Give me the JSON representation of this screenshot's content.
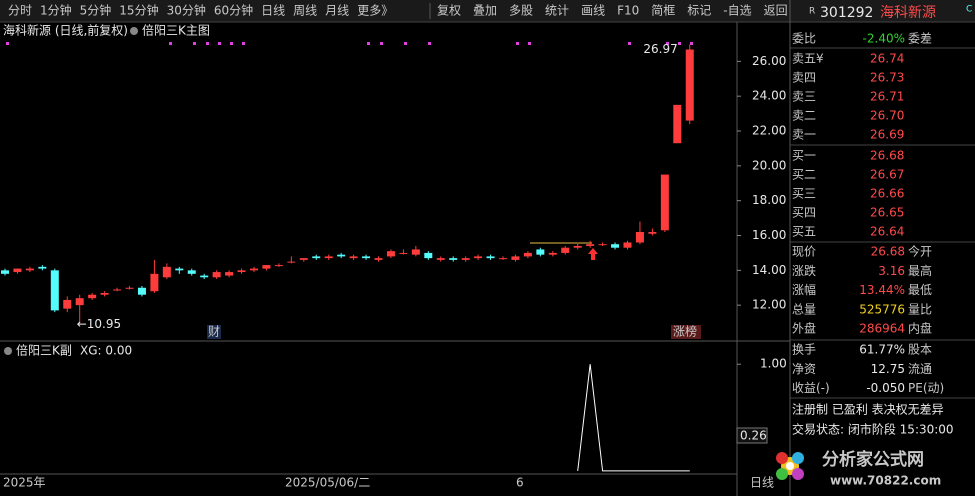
{
  "toolbar": {
    "periods": [
      "分时",
      "1分钟",
      "5分钟",
      "15分钟",
      "30分钟",
      "60分钟",
      "日线",
      "周线",
      "月线",
      "更多》"
    ],
    "active_period": 6,
    "tools": [
      "复权",
      "叠加",
      "多股",
      "统计",
      "画线",
      "F10",
      "简框",
      "标记",
      "-自选",
      "返回"
    ]
  },
  "chart_data": [
    {
      "type": "candlestick",
      "title": "海科新源 (日线,前复权)",
      "indicator": "倍阳三K主图",
      "open": [
        14.0,
        13.9,
        14.0,
        14.2,
        14.0,
        11.8,
        12.0,
        12.4,
        12.6,
        12.9,
        13.0,
        13.0,
        12.8,
        13.6,
        14.1,
        14.0,
        13.7,
        13.6,
        13.7,
        13.9,
        14.0,
        14.1,
        14.3,
        14.5,
        14.6,
        14.8,
        14.7,
        14.9,
        14.7,
        14.8,
        14.6,
        14.8,
        15.0,
        14.9,
        15.0,
        14.6,
        14.7,
        14.6,
        14.7,
        14.8,
        14.7,
        14.6,
        14.8,
        15.2,
        14.9,
        15.0,
        15.3,
        15.4,
        15.5,
        15.5,
        15.3,
        15.6,
        16.1,
        16.3,
        21.3,
        22.6
      ],
      "high": [
        14.1,
        14.1,
        14.2,
        14.3,
        14.1,
        12.5,
        12.6,
        12.7,
        12.8,
        13.0,
        13.1,
        13.1,
        14.6,
        14.4,
        14.2,
        14.1,
        13.8,
        14.0,
        14.0,
        14.1,
        14.2,
        14.3,
        14.4,
        14.8,
        14.7,
        14.9,
        14.9,
        15.0,
        14.9,
        14.9,
        14.8,
        15.2,
        15.2,
        15.4,
        15.1,
        14.8,
        14.8,
        14.8,
        14.9,
        14.9,
        14.8,
        14.9,
        15.1,
        15.3,
        15.1,
        15.4,
        15.6,
        15.7,
        15.6,
        15.6,
        15.7,
        16.8,
        16.4,
        19.5,
        23.5,
        26.97
      ],
      "low": [
        13.7,
        13.8,
        13.9,
        14.0,
        11.6,
        11.6,
        10.95,
        12.3,
        12.5,
        12.8,
        12.9,
        12.5,
        12.7,
        13.5,
        13.8,
        13.7,
        13.5,
        13.5,
        13.6,
        13.8,
        13.9,
        14.0,
        14.2,
        14.4,
        14.5,
        14.6,
        14.6,
        14.7,
        14.6,
        14.6,
        14.5,
        14.7,
        14.9,
        14.8,
        14.6,
        14.5,
        14.5,
        14.5,
        14.6,
        14.6,
        14.6,
        14.5,
        14.7,
        14.8,
        14.8,
        14.9,
        15.2,
        15.3,
        15.4,
        15.2,
        15.2,
        15.5,
        16.0,
        16.2,
        21.3,
        22.4
      ],
      "close": [
        13.8,
        14.1,
        14.1,
        14.1,
        11.7,
        12.3,
        12.4,
        12.6,
        12.7,
        12.9,
        13.0,
        12.6,
        13.8,
        14.2,
        14.0,
        13.8,
        13.6,
        13.9,
        13.9,
        14.0,
        14.1,
        14.3,
        14.3,
        14.5,
        14.7,
        14.7,
        14.8,
        14.8,
        14.8,
        14.7,
        14.7,
        15.1,
        15.0,
        15.2,
        14.7,
        14.7,
        14.6,
        14.7,
        14.8,
        14.7,
        14.7,
        14.8,
        15.0,
        14.9,
        15.0,
        15.3,
        15.4,
        15.5,
        15.5,
        15.3,
        15.6,
        16.2,
        16.2,
        19.5,
        23.5,
        26.68
      ],
      "up_color": "#ff3c3c",
      "down_color": "#54fcfc",
      "ylim": [
        10,
        27.8
      ],
      "yticks": [
        {
          "value": 12,
          "label": "12.00"
        },
        {
          "value": 14,
          "label": "14.00"
        },
        {
          "value": 16,
          "label": "16.00"
        },
        {
          "value": 18,
          "label": "18.00"
        },
        {
          "value": 20,
          "label": "20.00"
        },
        {
          "value": 22,
          "label": "22.00"
        },
        {
          "value": 24,
          "label": "24.00"
        },
        {
          "value": 26,
          "label": "26.00"
        }
      ],
      "high_label": "26.97",
      "low_label": "←10.95",
      "badges": [
        "财",
        "涨榜"
      ],
      "x_labels": [
        "2025年",
        "2025/05/06/二",
        "6",
        "日线"
      ]
    },
    {
      "type": "line",
      "title": "倍阳三K副",
      "value_text": "XG: 0.00",
      "color": "#ffffff",
      "values": [
        null,
        null,
        null,
        null,
        null,
        null,
        null,
        null,
        null,
        null,
        null,
        null,
        null,
        null,
        null,
        null,
        null,
        null,
        null,
        null,
        null,
        null,
        null,
        null,
        null,
        null,
        null,
        null,
        null,
        null,
        null,
        null,
        null,
        null,
        null,
        null,
        null,
        null,
        null,
        null,
        null,
        null,
        null,
        null,
        null,
        null,
        0,
        1,
        0,
        0,
        0,
        0,
        0,
        0,
        0,
        0
      ],
      "ylim": [
        -0.01,
        1.18
      ],
      "yticks": [
        {
          "value": 1,
          "label": "1.00"
        }
      ],
      "cursor_value": "0.26"
    }
  ],
  "quote": {
    "code": "301292",
    "name": "海科新源",
    "tag": "R",
    "tag2": "C",
    "ratio": {
      "label": "委比",
      "value": "-2.40%",
      "label2": "委差"
    },
    "asks": [
      {
        "label": "卖五¥",
        "value": "26.74"
      },
      {
        "label": "卖四",
        "value": "26.73"
      },
      {
        "label": "卖三",
        "value": "26.71"
      },
      {
        "label": "卖二",
        "value": "26.70"
      },
      {
        "label": "卖一",
        "value": "26.69"
      }
    ],
    "bids": [
      {
        "label": "买一",
        "value": "26.68"
      },
      {
        "label": "买二",
        "value": "26.67"
      },
      {
        "label": "买三",
        "value": "26.66"
      },
      {
        "label": "买四",
        "value": "26.65"
      },
      {
        "label": "买五",
        "value": "26.64"
      }
    ],
    "stats": [
      {
        "label": "现价",
        "value": "26.68",
        "label2": "今开"
      },
      {
        "label": "涨跌",
        "value": "3.16",
        "label2": "最高"
      },
      {
        "label": "涨幅",
        "value": "13.44%",
        "label2": "最低"
      },
      {
        "label": "总量",
        "value": "525776",
        "label2": "量比"
      },
      {
        "label": "外盘",
        "value": "286964",
        "label2": "内盘"
      }
    ],
    "fund": [
      {
        "label": "换手",
        "value": "61.77%",
        "label2": "股本"
      },
      {
        "label": "净资",
        "value": "12.75",
        "label2": "流通"
      },
      {
        "label": "收益(-)",
        "value": "-0.050",
        "label2": "PE(动)"
      }
    ],
    "flags": "注册制 已盈利 表决权无差异",
    "status": "交易状态: 闭市阶段 15:30:00"
  },
  "logo": {
    "name": "分析家公式网",
    "url": "www.70822.com"
  }
}
